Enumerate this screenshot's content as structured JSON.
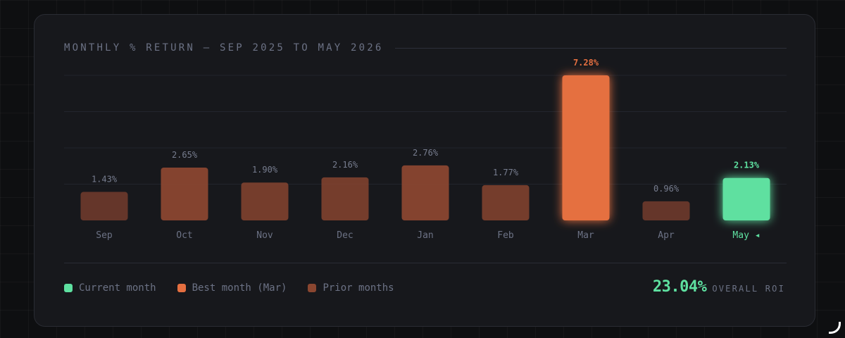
{
  "colors": {
    "current": "#5ee0a0",
    "best": "#e56f40",
    "prior": "#8a4630",
    "prior_label": "#777d8f",
    "best_label": "#e56f40",
    "current_label": "#5ee0a0"
  },
  "legend": {
    "current": "Current month",
    "best": "Best month (Mar)",
    "prior": "Prior months"
  },
  "roi": {
    "value": "23.04%",
    "label": "OVERALL ROI"
  },
  "chart_data": {
    "type": "bar",
    "title": "MONTHLY % RETURN — SEP 2025 TO MAY 2026",
    "categories": [
      "Sep",
      "Oct",
      "Nov",
      "Dec",
      "Jan",
      "Feb",
      "Mar",
      "Apr",
      "May"
    ],
    "category_labels": [
      "Sep",
      "Oct",
      "Nov",
      "Dec",
      "Jan",
      "Feb",
      "Mar",
      "Apr",
      "May ◂"
    ],
    "values": [
      1.43,
      2.65,
      1.9,
      2.16,
      2.76,
      1.77,
      7.28,
      0.96,
      2.13
    ],
    "value_labels": [
      "1.43%",
      "2.65%",
      "1.90%",
      "2.16%",
      "2.76%",
      "1.77%",
      "7.28%",
      "0.96%",
      "2.13%"
    ],
    "status": [
      "prior",
      "prior",
      "prior",
      "prior",
      "prior",
      "prior",
      "best",
      "prior",
      "current"
    ],
    "ylim": [
      0,
      7.28
    ],
    "grid": true,
    "legend_position": "bottom-left"
  }
}
